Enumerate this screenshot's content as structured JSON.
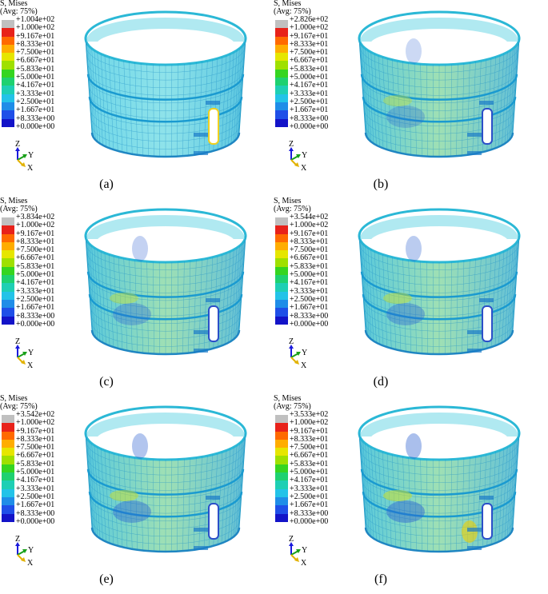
{
  "legend_title": "S, Mises",
  "legend_subtitle": "(Avg: 75%)",
  "color_scale": [
    "#c0c0c0",
    "#e8221a",
    "#ff6a00",
    "#ffad00",
    "#e6e600",
    "#9fe000",
    "#35d520",
    "#1ed170",
    "#1ecfb4",
    "#23c3e8",
    "#1f8de8",
    "#1f4fe8",
    "#1313c8"
  ],
  "common_ticks": [
    "+1.000e+02",
    "+9.167e+01",
    "+8.333e+01",
    "+7.500e+01",
    "+6.667e+01",
    "+5.833e+01",
    "+5.000e+01",
    "+4.167e+01",
    "+3.333e+01",
    "+2.500e+01",
    "+1.667e+01",
    "+8.333e+00",
    "+0.000e+00"
  ],
  "panels": [
    {
      "label": "(a)",
      "max": "+1.004e+02"
    },
    {
      "label": "(b)",
      "max": "+2.826e+02"
    },
    {
      "label": "(c)",
      "max": "+3.834e+02"
    },
    {
      "label": "(d)",
      "max": "+3.544e+02"
    },
    {
      "label": "(e)",
      "max": "+3.542e+02"
    },
    {
      "label": "(f)",
      "max": "+3.533e+02"
    }
  ],
  "axes": {
    "z": "Z",
    "y": "Y",
    "x": "X"
  }
}
